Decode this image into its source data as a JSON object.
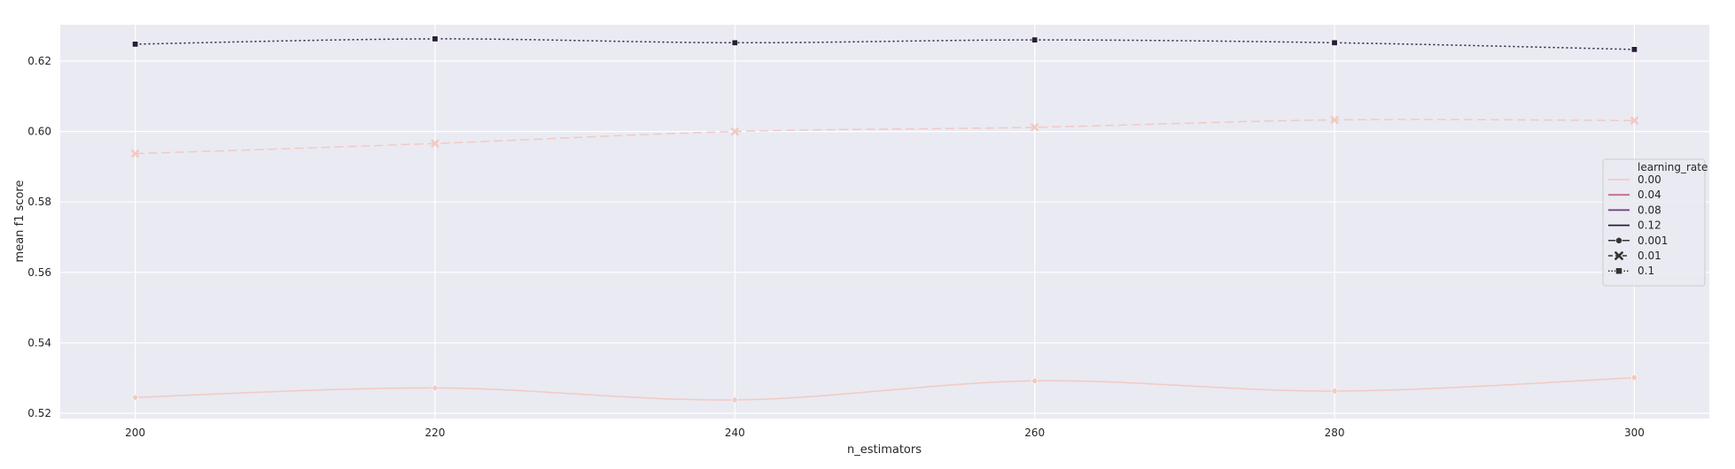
{
  "chart_data": {
    "type": "line",
    "xlabel": "n_estimators",
    "ylabel": "mean f1 score",
    "x": [
      200,
      220,
      240,
      260,
      280,
      300
    ],
    "xticks": [
      "200",
      "220",
      "240",
      "260",
      "280",
      "300"
    ],
    "xlim": [
      195,
      305
    ],
    "yticks": [
      "0.52",
      "0.54",
      "0.56",
      "0.58",
      "0.60",
      "0.62"
    ],
    "ylim": [
      0.5185,
      0.6303
    ],
    "grid": true,
    "legend_position": "right",
    "legend": {
      "title": "learning_rate",
      "hue_entries": [
        {
          "label": "0.00",
          "color": "#f1cac2"
        },
        {
          "label": "0.04",
          "color": "#c26b8c"
        },
        {
          "label": "0.08",
          "color": "#6b3a7b"
        },
        {
          "label": "0.12",
          "color": "#281d38"
        }
      ],
      "style_entries": [
        {
          "label": "0.001",
          "dash": "solid",
          "marker": "circle"
        },
        {
          "label": "0.01",
          "dash": "dashed",
          "marker": "x"
        },
        {
          "label": "0.1",
          "dash": "dotted",
          "marker": "square"
        }
      ]
    },
    "series": [
      {
        "name": "0.001",
        "color": "#f1cac2",
        "dash": "solid",
        "marker": "circle",
        "values": [
          0.5245,
          0.5272,
          0.5238,
          0.5292,
          0.5263,
          0.5301
        ]
      },
      {
        "name": "0.01",
        "color": "#f1cac2",
        "dash": "dashed",
        "marker": "x",
        "values": [
          0.5937,
          0.5966,
          0.6,
          0.6012,
          0.6033,
          0.6031
        ]
      },
      {
        "name": "0.1",
        "color": "#281d38",
        "dash": "dotted",
        "marker": "square",
        "values": [
          0.6248,
          0.6263,
          0.6252,
          0.626,
          0.6252,
          0.6233
        ]
      }
    ]
  }
}
